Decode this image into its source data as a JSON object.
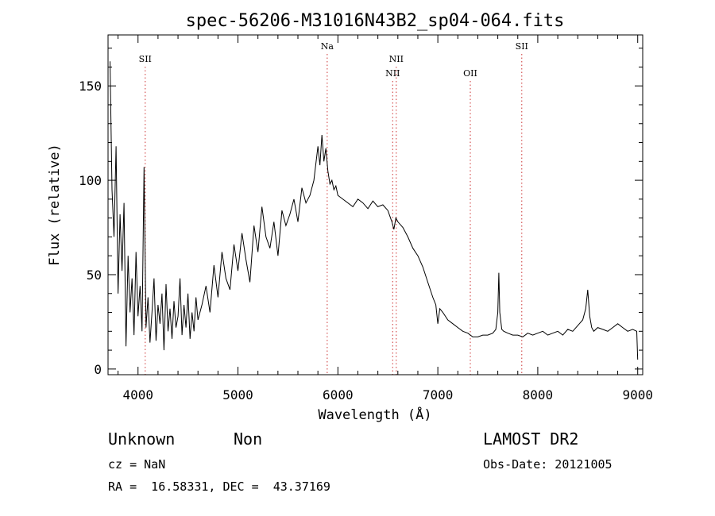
{
  "chart_data": {
    "type": "line",
    "title": "spec-56206-M31016N43B2_sp04-064.fits",
    "xlabel": "Wavelength (Å)",
    "ylabel": "Flux (relative)",
    "xlim": [
      3700,
      9050
    ],
    "ylim": [
      -3,
      177
    ],
    "x_ticks": [
      4000,
      5000,
      6000,
      7000,
      8000,
      9000
    ],
    "y_ticks": [
      0,
      50,
      100,
      150
    ],
    "grid": false,
    "line_color": "#000000",
    "line_marker_color": "#cc3333",
    "lines": [
      {
        "name": "SII",
        "wavelength": 4072,
        "label_row": 1
      },
      {
        "name": "Na",
        "wavelength": 5893,
        "label_row": 0
      },
      {
        "name": "NII",
        "wavelength": 6548,
        "label_row": 2
      },
      {
        "name": "NII",
        "wavelength": 6584,
        "label_row": 1
      },
      {
        "name": "OII",
        "wavelength": 7325,
        "label_row": 2
      },
      {
        "name": "SII",
        "wavelength": 7840,
        "label_row": 0
      }
    ],
    "series": [
      {
        "x": [
          3720,
          3740,
          3760,
          3780,
          3800,
          3820,
          3840,
          3860,
          3880,
          3900,
          3920,
          3940,
          3960,
          3980,
          4000,
          4020,
          4040,
          4060,
          4080,
          4100,
          4120,
          4140,
          4160,
          4180,
          4200,
          4220,
          4240,
          4260,
          4280,
          4300,
          4320,
          4340,
          4360,
          4380,
          4400,
          4420,
          4440,
          4460,
          4480,
          4500,
          4520,
          4540,
          4560,
          4580,
          4600,
          4640,
          4680,
          4720,
          4760,
          4800,
          4840,
          4880,
          4920,
          4960,
          5000,
          5040,
          5080,
          5120,
          5160,
          5200,
          5240,
          5280,
          5320,
          5360,
          5400,
          5440,
          5480,
          5520,
          5560,
          5600,
          5640,
          5680,
          5720,
          5760,
          5800,
          5820,
          5840,
          5860,
          5880,
          5900,
          5920,
          5940,
          5960,
          5980,
          6000,
          6050,
          6100,
          6150,
          6200,
          6250,
          6300,
          6350,
          6400,
          6450,
          6500,
          6540,
          6560,
          6580,
          6600,
          6650,
          6700,
          6750,
          6800,
          6850,
          6900,
          6950,
          6980,
          7000,
          7020,
          7050,
          7100,
          7150,
          7200,
          7250,
          7300,
          7350,
          7400,
          7450,
          7500,
          7550,
          7580,
          7600,
          7610,
          7620,
          7640,
          7660,
          7700,
          7750,
          7800,
          7850,
          7900,
          7950,
          8000,
          8050,
          8100,
          8150,
          8200,
          8250,
          8300,
          8350,
          8400,
          8450,
          8480,
          8500,
          8520,
          8540,
          8560,
          8600,
          8650,
          8700,
          8750,
          8800,
          8850,
          8900,
          8950,
          8990,
          9000
        ],
        "y": [
          163,
          95,
          70,
          118,
          40,
          82,
          52,
          88,
          12,
          60,
          30,
          48,
          18,
          62,
          28,
          44,
          20,
          107,
          22,
          38,
          14,
          30,
          48,
          15,
          34,
          24,
          40,
          10,
          45,
          20,
          32,
          16,
          36,
          22,
          28,
          48,
          18,
          34,
          22,
          40,
          16,
          30,
          20,
          38,
          26,
          34,
          44,
          30,
          55,
          38,
          62,
          48,
          42,
          66,
          52,
          72,
          58,
          46,
          76,
          62,
          86,
          70,
          64,
          78,
          60,
          84,
          76,
          82,
          90,
          78,
          96,
          88,
          92,
          100,
          118,
          108,
          124,
          110,
          117,
          105,
          98,
          100,
          95,
          97,
          92,
          90,
          88,
          86,
          90,
          88,
          85,
          89,
          86,
          87,
          84,
          78,
          74,
          80,
          78,
          75,
          70,
          64,
          60,
          54,
          46,
          38,
          34,
          24,
          32,
          30,
          26,
          24,
          22,
          20,
          19,
          17,
          17,
          18,
          18,
          19,
          21,
          30,
          51,
          30,
          21,
          20,
          19,
          18,
          18,
          17,
          19,
          18,
          19,
          20,
          18,
          19,
          20,
          18,
          21,
          20,
          23,
          26,
          32,
          42,
          28,
          22,
          20,
          22,
          21,
          20,
          22,
          24,
          22,
          20,
          21,
          20,
          5
        ]
      }
    ]
  },
  "info": {
    "obj_class": "Unknown",
    "obj_subclass": "Non",
    "survey": "LAMOST DR2",
    "cz": "cz = NaN",
    "obs_date": "Obs-Date: 20121005",
    "coords": "RA =  16.58331, DEC =  43.37169"
  }
}
